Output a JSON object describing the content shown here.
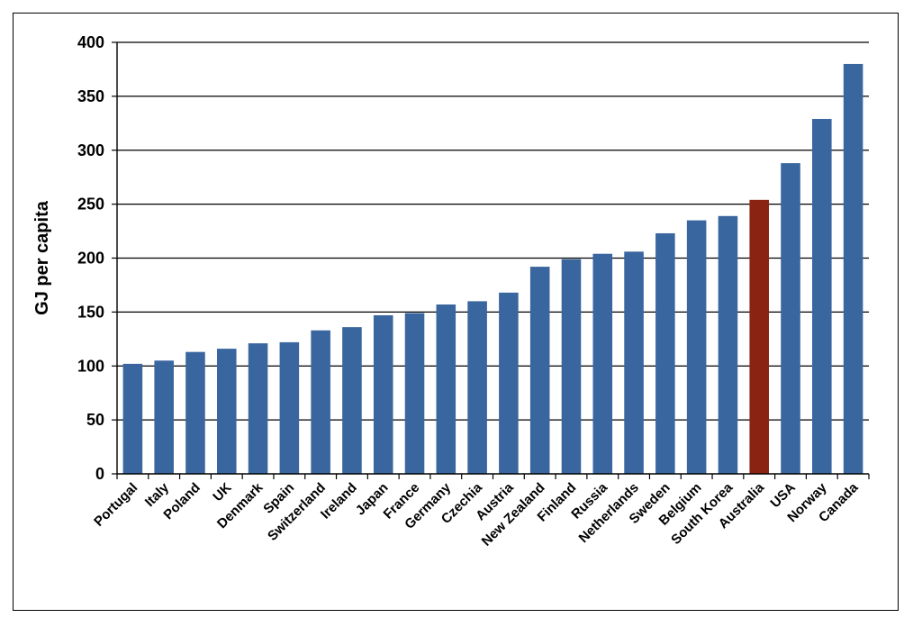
{
  "chart_data": {
    "type": "bar",
    "title": "",
    "xlabel": "",
    "ylabel": "GJ per capita",
    "ylim": [
      0,
      400
    ],
    "yticks": [
      0,
      50,
      100,
      150,
      200,
      250,
      300,
      350,
      400
    ],
    "grid": true,
    "legend": "none",
    "bar_color": "#3A66A0",
    "highlight_color": "#8B2312",
    "highlight_category": "Australia",
    "categories": [
      "Portugal",
      "Italy",
      "Poland",
      "UK",
      "Denmark",
      "Spain",
      "Switzerland",
      "Ireland",
      "Japan",
      "France",
      "Germany",
      "Czechia",
      "Austria",
      "New Zealand",
      "Finland",
      "Russia",
      "Netherlands",
      "Sweden",
      "Belgium",
      "South Korea",
      "Australia",
      "USA",
      "Norway",
      "Canada"
    ],
    "values": [
      102,
      105,
      113,
      116,
      121,
      122,
      133,
      136,
      147,
      149,
      157,
      160,
      168,
      192,
      199,
      204,
      206,
      223,
      235,
      239,
      254,
      288,
      329,
      380
    ]
  }
}
